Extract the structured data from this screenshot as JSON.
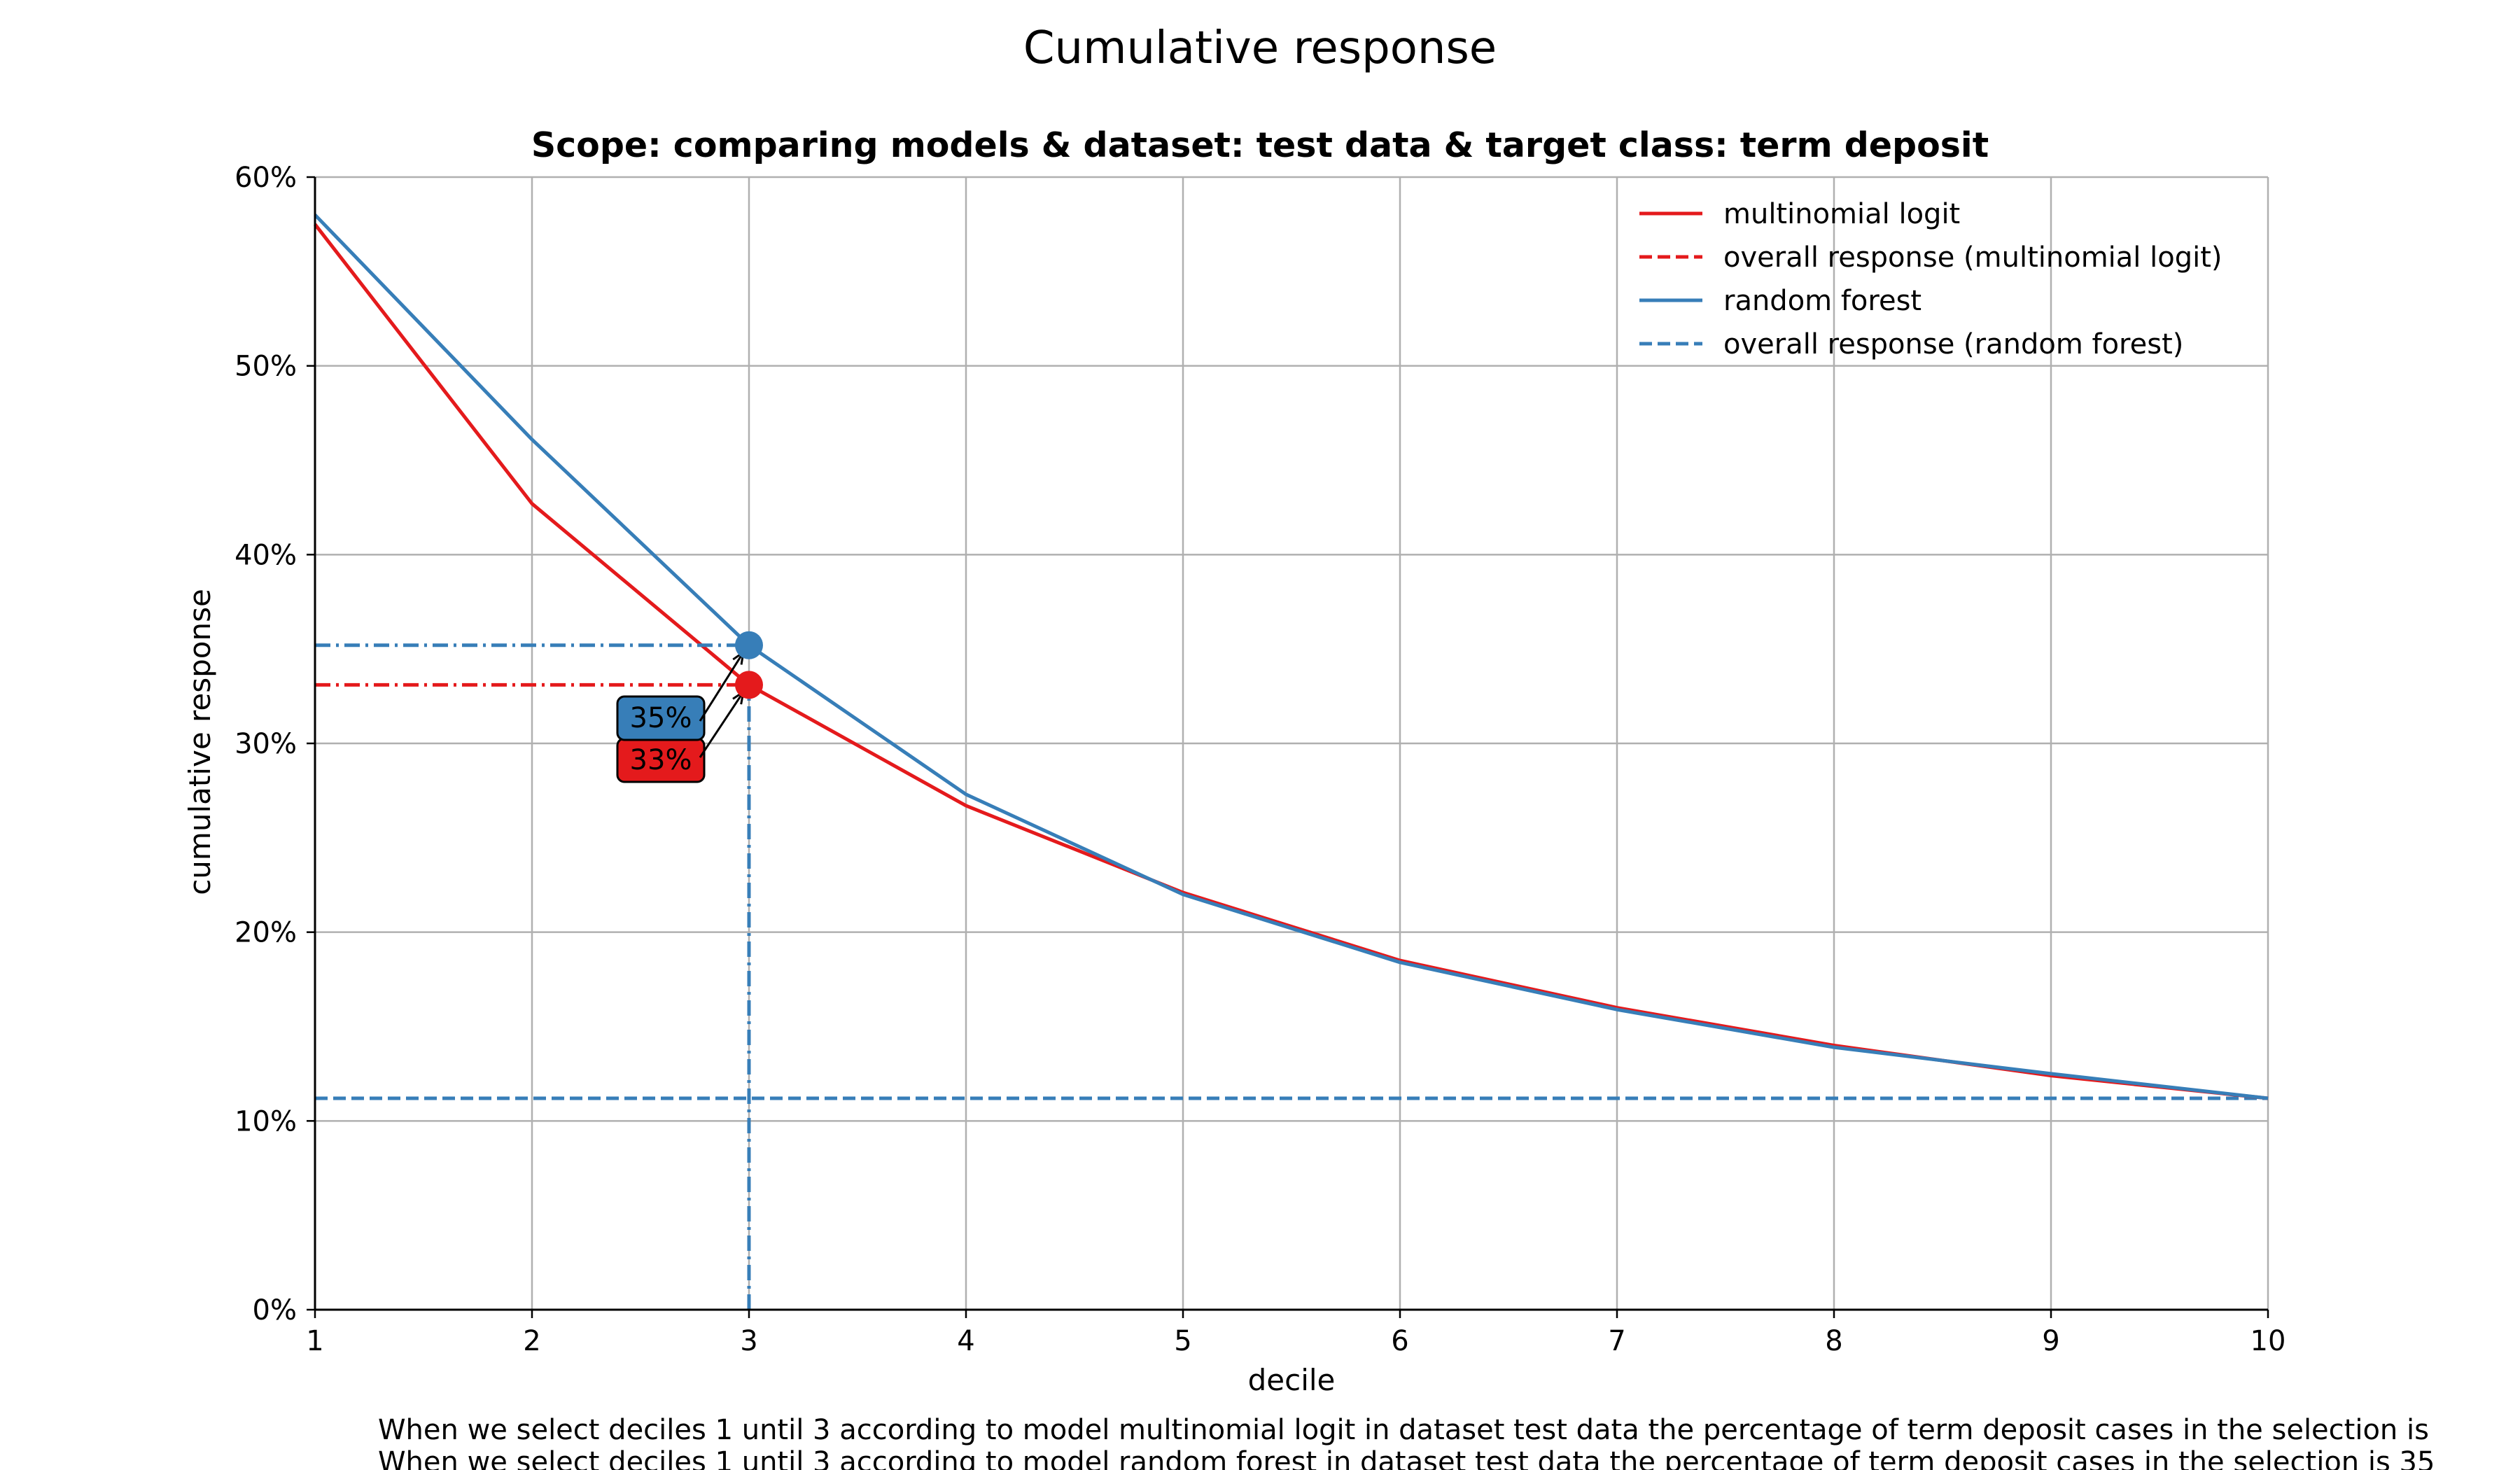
{
  "chart_data": {
    "type": "line",
    "title": "Cumulative response",
    "subtitle": "Scope: comparing models & dataset: test data & target class: term deposit",
    "xlabel": "decile",
    "ylabel": "cumulative response",
    "x": [
      1,
      2,
      3,
      4,
      5,
      6,
      7,
      8,
      9,
      10
    ],
    "xlim": [
      1,
      10
    ],
    "ylim": [
      0,
      0.6
    ],
    "yticks": [
      0,
      0.1,
      0.2,
      0.3,
      0.4,
      0.5,
      0.6
    ],
    "ytick_labels": [
      "0%",
      "10%",
      "20%",
      "30%",
      "40%",
      "50%",
      "60%"
    ],
    "xtick_labels": [
      "1",
      "2",
      "3",
      "4",
      "5",
      "6",
      "7",
      "8",
      "9",
      "10"
    ],
    "grid": true,
    "legend_position": "top-right",
    "series": [
      {
        "name": "multinomial logit",
        "color": "#e41a1c",
        "style": "solid",
        "values": [
          0.575,
          0.427,
          0.331,
          0.267,
          0.221,
          0.185,
          0.16,
          0.14,
          0.124,
          0.112
        ]
      },
      {
        "name": "overall response (multinomial logit)",
        "color": "#e41a1c",
        "style": "dashed",
        "values": [
          0.112,
          0.112,
          0.112,
          0.112,
          0.112,
          0.112,
          0.112,
          0.112,
          0.112,
          0.112
        ]
      },
      {
        "name": "random forest",
        "color": "#377eb8",
        "style": "solid",
        "values": [
          0.58,
          0.461,
          0.352,
          0.273,
          0.22,
          0.184,
          0.159,
          0.139,
          0.125,
          0.112
        ]
      },
      {
        "name": "overall response (random forest)",
        "color": "#377eb8",
        "style": "dashed",
        "values": [
          0.112,
          0.112,
          0.112,
          0.112,
          0.112,
          0.112,
          0.112,
          0.112,
          0.112,
          0.112
        ]
      }
    ],
    "highlight": {
      "decile": 3,
      "points": [
        {
          "series": "multinomial logit",
          "value": 0.331,
          "label": "33%",
          "color": "#e41a1c"
        },
        {
          "series": "random forest",
          "value": 0.352,
          "label": "35%",
          "color": "#377eb8"
        }
      ]
    },
    "footer": [
      "When we select deciles 1 until 3 according to model multinomial logit in dataset test data the percentage of term deposit cases in the selection is",
      "When we select deciles 1 until 3 according to model random forest in dataset test data the percentage of term deposit cases in the selection is 35"
    ]
  }
}
